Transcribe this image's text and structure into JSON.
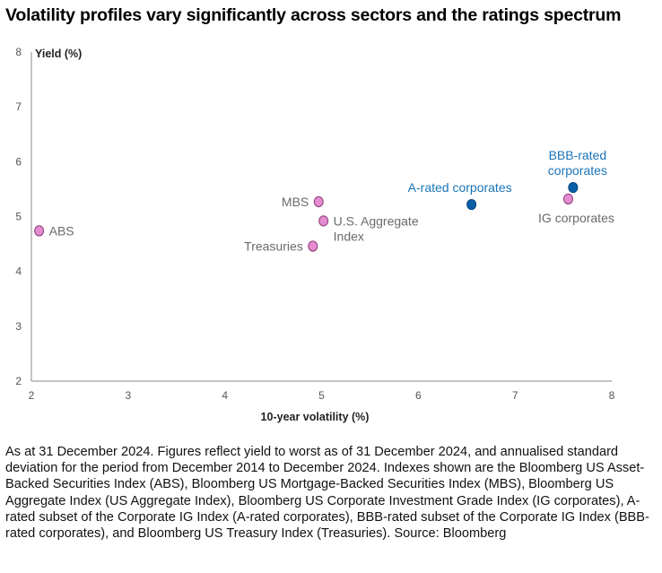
{
  "title": "Volatility profiles vary significantly across sectors and the ratings spectrum",
  "note": "As at 31 December 2024. Figures reflect yield to worst as of 31 December 2024, and annualised standard deviation for the period from December 2014 to December 2024. Indexes shown are the Bloomberg US Asset-Backed Securities Index (ABS), Bloomberg US Mortgage-Backed Securities Index (MBS), Bloomberg US Aggregate Index (US Aggregate Index), Bloomberg US Corporate Investment Grade Index (IG corporates), A-rated subset of the Corporate IG Index (A-rated corporates), BBB-rated subset of the Corporate IG Index (BBB-rated corporates), and Bloomberg US Treasury Index (Treasuries). Source: Bloomberg",
  "colors": {
    "pink": "#e58bd0",
    "blue": "#0a5ea8",
    "label_gray": "#6a6a6a",
    "label_blue": "#1b74b8",
    "axis": "#888888"
  },
  "chart_data": {
    "type": "scatter",
    "xlabel": "10-year volatility (%)",
    "ylabel": "Yield (%)",
    "xlim": [
      2,
      8
    ],
    "ylim": [
      2,
      8
    ],
    "xticks": [
      "2",
      "3",
      "4",
      "5",
      "6",
      "7",
      "8"
    ],
    "yticks": [
      "2",
      "3",
      "4",
      "5",
      "6",
      "7",
      "8"
    ],
    "grid": false,
    "points": [
      {
        "label": "ABS",
        "x": 2.08,
        "y": 4.74,
        "color": "pink",
        "anchor": "right",
        "label_color": "gray"
      },
      {
        "label": "MBS",
        "x": 4.97,
        "y": 5.27,
        "color": "pink",
        "anchor": "left",
        "label_color": "gray"
      },
      {
        "label": "U.S. Aggregate\nIndex",
        "x": 5.02,
        "y": 4.92,
        "color": "pink",
        "anchor": "right",
        "label_color": "gray"
      },
      {
        "label": "Treasuries",
        "x": 4.91,
        "y": 4.46,
        "color": "pink",
        "anchor": "left",
        "label_color": "gray"
      },
      {
        "label": "A-rated corporates",
        "x": 6.55,
        "y": 5.22,
        "color": "blue",
        "anchor": "above",
        "label_color": "blue"
      },
      {
        "label": "BBB-rated\ncorporates",
        "x": 7.6,
        "y": 5.53,
        "color": "blue",
        "anchor": "above",
        "label_color": "blue"
      },
      {
        "label": "IG corporates",
        "x": 7.55,
        "y": 5.32,
        "color": "pink",
        "anchor": "below",
        "label_color": "gray"
      }
    ]
  }
}
